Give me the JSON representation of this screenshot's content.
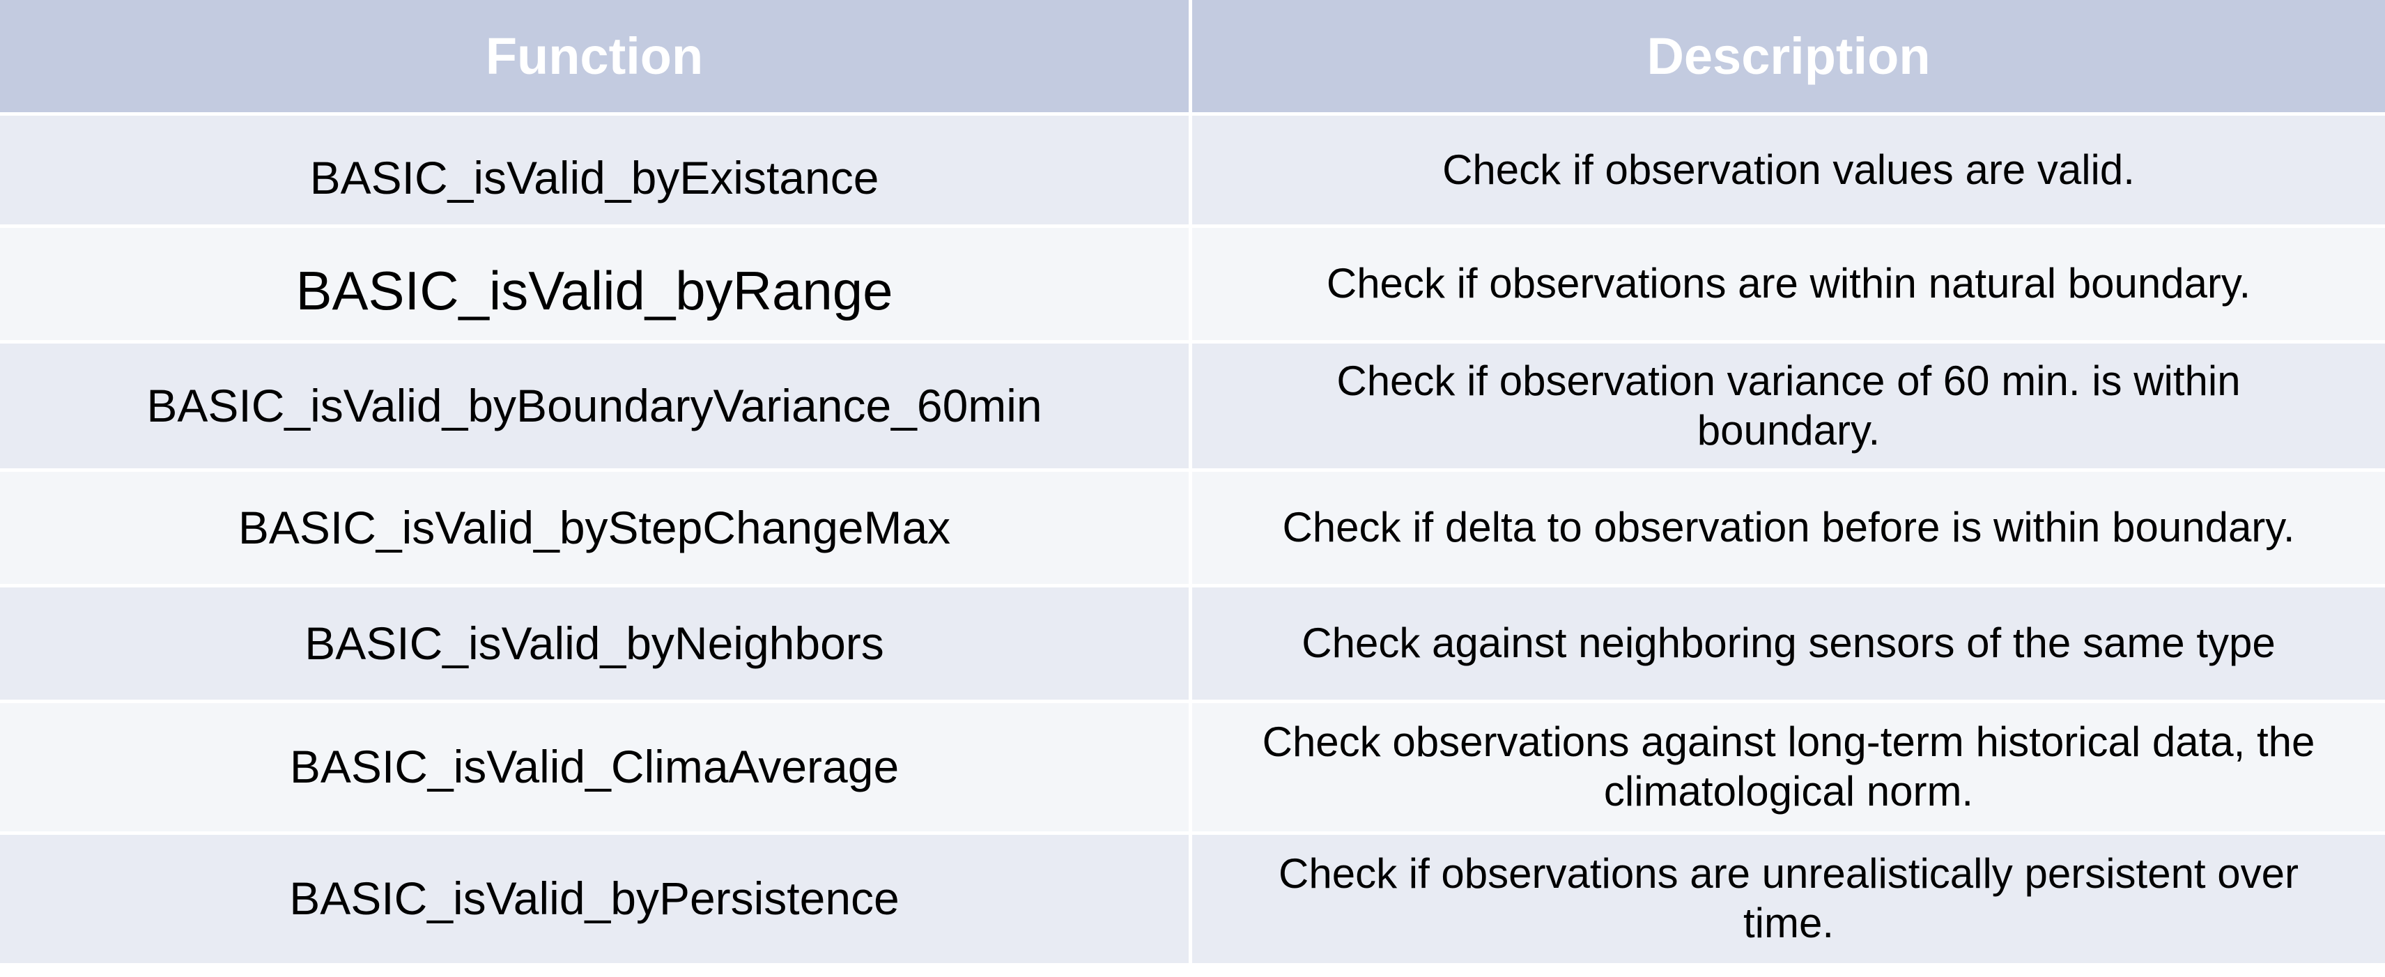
{
  "table": {
    "headers": {
      "function": "Function",
      "description": "Description"
    },
    "rows": [
      {
        "function": "BASIC_isValid_byExistance",
        "description": "Check if observation values are valid."
      },
      {
        "function": "BASIC_isValid_byRange",
        "description": "Check if observations are within natural boundary."
      },
      {
        "function": "BASIC_isValid_byBoundaryVariance_60min",
        "description": "Check if observation variance of 60 min. is within boundary."
      },
      {
        "function": "BASIC_isValid_byStepChangeMax",
        "description": "Check if delta to observation before is within boundary."
      },
      {
        "function": "BASIC_isValid_byNeighbors",
        "description": "Check against neighboring sensors of the same type"
      },
      {
        "function": "BASIC_isValid_ClimaAverage",
        "description": "Check observations against long-term historical data, the climatological norm."
      },
      {
        "function": "BASIC_isValid_byPersistence",
        "description": "Check if observations are unrealistically persistent over time."
      }
    ]
  },
  "colors": {
    "header_bg": "#c3cbe0",
    "row_odd_bg": "#e8ebf3",
    "row_even_bg": "#f4f6f9",
    "header_text": "#ffffff"
  }
}
